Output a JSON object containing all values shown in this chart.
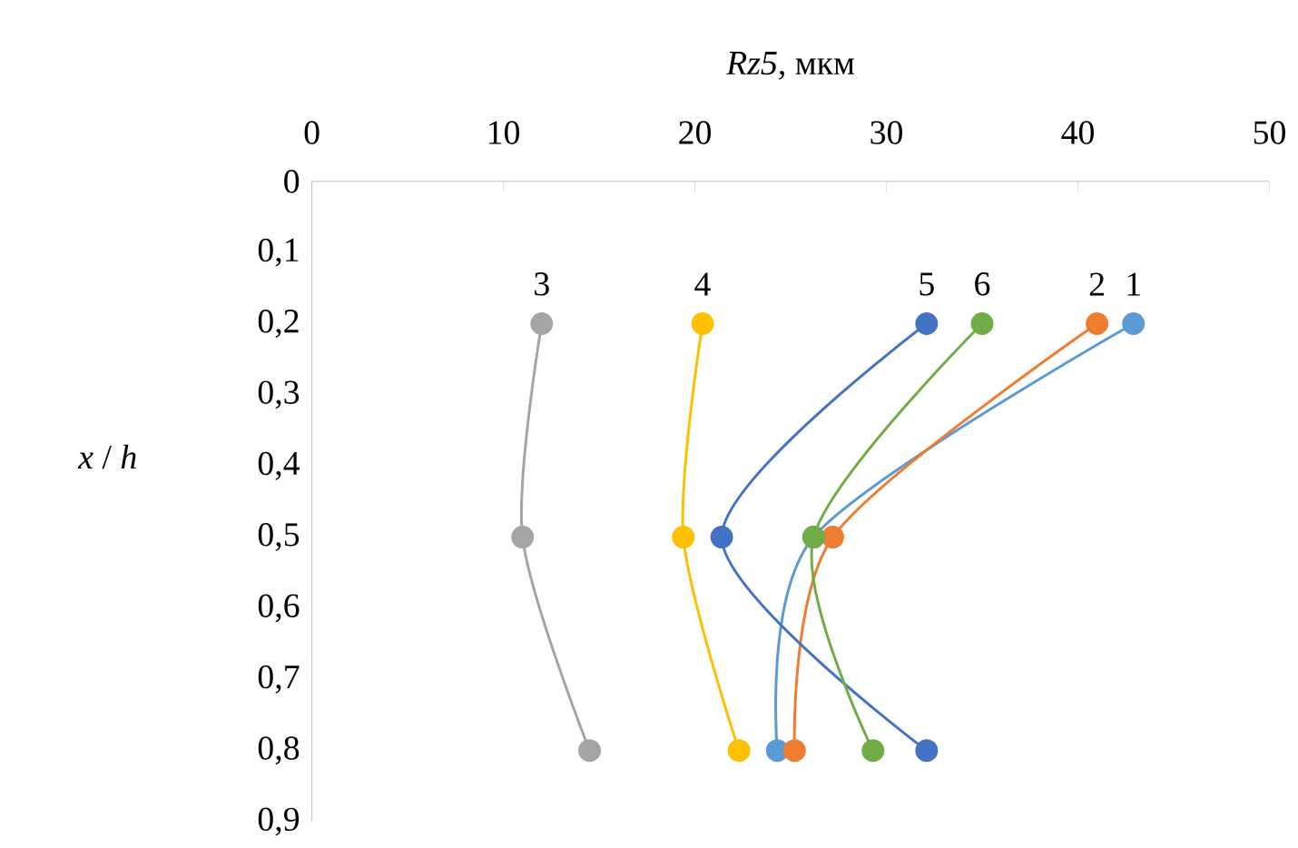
{
  "chart_data": {
    "type": "line",
    "xlabel": "*Rz5*, мкм",
    "ylabel": "*x* / *h*",
    "xlim": [
      0,
      50
    ],
    "xticks": [
      0,
      10,
      20,
      30,
      40,
      50
    ],
    "ylim": [
      0.9,
      0
    ],
    "yticks": [
      {
        "value": 0,
        "label": "0"
      },
      {
        "value": 0.1,
        "label": "0,1"
      },
      {
        "value": 0.2,
        "label": "0,2"
      },
      {
        "value": 0.3,
        "label": "0,3"
      },
      {
        "value": 0.4,
        "label": "0,4"
      },
      {
        "value": 0.5,
        "label": "0,5"
      },
      {
        "value": 0.6,
        "label": "0,6"
      },
      {
        "value": 0.7,
        "label": "0,7"
      },
      {
        "value": 0.8,
        "label": "0,8"
      },
      {
        "value": 0.9,
        "label": "0,9"
      }
    ],
    "marker": "circle",
    "series": [
      {
        "name": "1",
        "color": "#5b9bd5",
        "x": [
          42.9,
          26.2,
          24.3
        ],
        "values": [
          0.2,
          0.5,
          0.8
        ]
      },
      {
        "name": "2",
        "color": "#ed7d31",
        "x": [
          41.0,
          27.2,
          25.2
        ],
        "values": [
          0.2,
          0.5,
          0.8
        ]
      },
      {
        "name": "3",
        "color": "#a5a5a5",
        "x": [
          12.0,
          11.0,
          14.5
        ],
        "values": [
          0.2,
          0.5,
          0.8
        ]
      },
      {
        "name": "4",
        "color": "#ffc000",
        "x": [
          20.4,
          19.4,
          22.3
        ],
        "values": [
          0.2,
          0.5,
          0.8
        ]
      },
      {
        "name": "5",
        "color": "#4472c4",
        "x": [
          32.1,
          21.4,
          32.1
        ],
        "values": [
          0.2,
          0.5,
          0.8
        ]
      },
      {
        "name": "6",
        "color": "#70ad47",
        "x": [
          35.0,
          26.2,
          29.3
        ],
        "values": [
          0.2,
          0.5,
          0.8
        ]
      }
    ]
  }
}
